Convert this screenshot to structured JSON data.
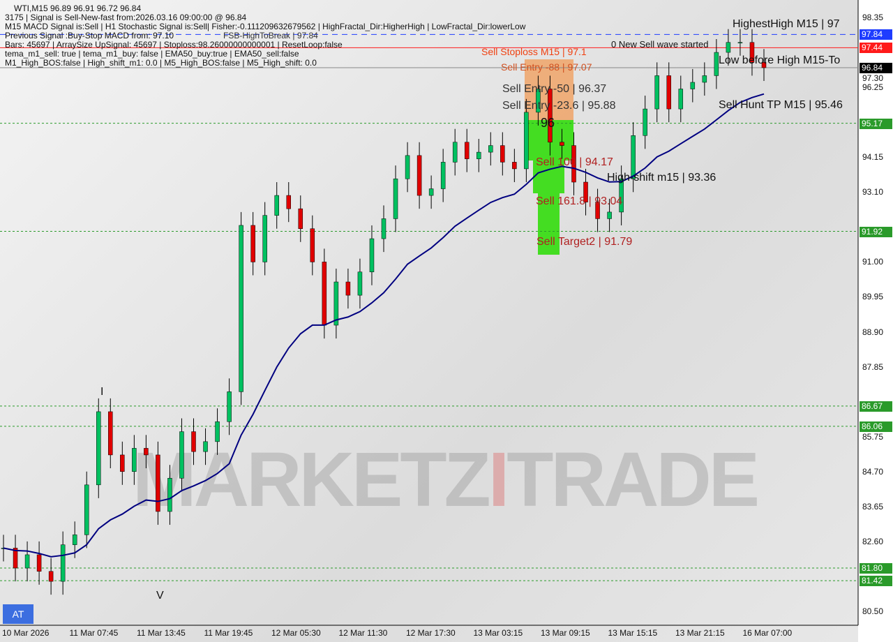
{
  "header": {
    "symbol_line": "WTI,M15  96.89 96.91 96.72 96.84",
    "lines": [
      "3175 | Signal is Sell-New-fast from:2026.03.16 09:00:00 @ 96.84",
      "M15 MACD Signal is:Sell | H1 Stochastic Signal is:Sell| Fisher:-0.111209632679562 | HighFractal_Dir:HigherHigh | LowFractal_Dir:lowerLow",
      "Previous Signal :Buy-Stop MACD from: 97.10",
      "Bars: 45697 | ArraySize UpSignal: 45697 | Stoploss:98.26000000000001 | ResetLoop:false",
      "tema_m1_sell: true | tema_m1_buy: false | EMA50_buy:true | EMA50_sell:false",
      "M1_High_BOS:false | High_shift_m1: 0.0 | M5_High_BOS:false | M5_High_shift: 0.0"
    ],
    "overlap": "FSB-HighToBreak | 97.84"
  },
  "annotations": {
    "highest_high": "HighestHigh   M15 | 97",
    "new_sell": "0 New Sell wave started",
    "low_before_high": "Low before High   M15-To",
    "sell_stoploss": "Sell Stoploss M15 | 97.1",
    "sell_entry_88": "Sell Entry -88 | 97.07",
    "sell_entry_50": "Sell Entry -50 | 96.37",
    "sell_entry_236": "Sell Entry -23.6 | 95.88",
    "sell_hunt": "Sell Hunt TP M15 | 95.46",
    "sell_100": "Sell 100 | 94.17",
    "high_shift": "High-shift m15 | 93.36",
    "sell_161": "Sell 161.8 | 93.04",
    "sell_target2": "Sell Target2 | 91.79",
    "i_mark": "I",
    "v_mark": "V",
    "num_96": "96"
  },
  "badge": "AT",
  "watermark": {
    "part1": "MARKETZ",
    "part2": "I",
    "part3": "TRADE"
  },
  "price_labels": [
    {
      "v": "97.84",
      "c": "#1e3cff"
    },
    {
      "v": "97.44",
      "c": "#ff1a1a"
    },
    {
      "v": "96.84",
      "c": "#000000"
    },
    {
      "v": "95.17",
      "c": "#2a9a2a"
    },
    {
      "v": "91.92",
      "c": "#2a9a2a"
    },
    {
      "v": "86.67",
      "c": "#2a9a2a"
    },
    {
      "v": "86.06",
      "c": "#2a9a2a"
    },
    {
      "v": "81.80",
      "c": "#2a9a2a"
    },
    {
      "v": "81.42",
      "c": "#2a9a2a"
    }
  ],
  "chart_data": {
    "type": "candlestick",
    "symbol": "WTI",
    "timeframe": "M15",
    "ylim": [
      80.5,
      98.35
    ],
    "yticks": [
      "98.35",
      "97.30",
      "96.25",
      "94.15",
      "93.10",
      "91.00",
      "89.95",
      "88.90",
      "87.85",
      "85.75",
      "84.70",
      "83.65",
      "82.60",
      "80.50"
    ],
    "xticks": [
      "10 Mar 2026",
      "11 Mar 07:45",
      "11 Mar 13:45",
      "11 Mar 19:45",
      "12 Mar 05:30",
      "12 Mar 11:30",
      "12 Mar 17:30",
      "13 Mar 03:15",
      "13 Mar 09:15",
      "13 Mar 15:15",
      "13 Mar 21:15",
      "16 Mar 07:00"
    ],
    "closes": [
      82.4,
      81.8,
      82.2,
      81.7,
      81.4,
      82.5,
      82.8,
      84.3,
      86.5,
      85.2,
      84.7,
      85.4,
      85.2,
      83.5,
      84.5,
      85.9,
      85.3,
      85.6,
      86.2,
      87.1,
      92.1,
      91.0,
      92.4,
      93.0,
      92.6,
      92.0,
      91.0,
      89.1,
      90.4,
      90.0,
      90.7,
      91.7,
      92.3,
      93.5,
      94.2,
      93.0,
      93.2,
      94.0,
      94.6,
      94.1,
      94.3,
      94.5,
      94.0,
      93.8,
      95.5,
      96.2,
      94.6,
      94.5,
      93.4,
      92.8,
      92.3,
      92.5,
      93.5,
      94.8,
      95.6,
      96.6,
      95.6,
      96.2,
      96.4,
      96.6,
      97.3,
      97.6,
      97.6,
      97.0,
      96.84
    ],
    "levels": [
      97.84,
      97.44,
      96.84,
      95.17,
      91.92,
      86.67,
      86.06,
      81.8,
      81.42
    ],
    "colors": {
      "bull": "#00c060",
      "bear": "#e00000",
      "ema": "#000080",
      "zone_sell": "#f0a060",
      "zone_target": "#44dd22"
    }
  }
}
